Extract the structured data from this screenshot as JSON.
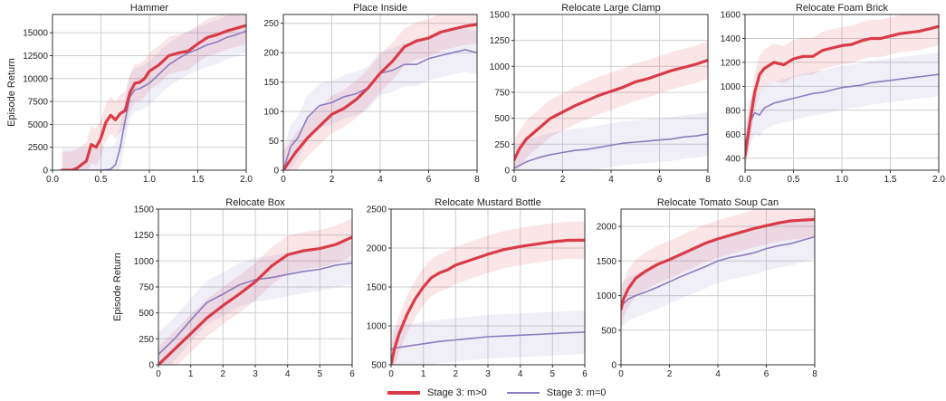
{
  "figure": {
    "ylabel": "Episode Return",
    "colors": {
      "m_pos": "#d93b48",
      "m_zero": "#8d7cbf",
      "grid": "#cfcfcf"
    }
  },
  "legend": {
    "items": [
      {
        "label": "Stage 3: m>0",
        "color": "#d93b48",
        "style": "thick"
      },
      {
        "label": "Stage 3: m=0",
        "color": "#8d7cbf",
        "style": "thin"
      }
    ]
  },
  "chart_data": [
    {
      "type": "line",
      "title": "Hammer",
      "xlabel": "",
      "ylabel": "Episode Return",
      "xlim": [
        0,
        2
      ],
      "ylim": [
        0,
        17000
      ],
      "xticks": [
        0,
        0.5,
        1,
        1.5,
        2
      ],
      "xtick_labels": [
        "0.0",
        "0.5",
        "1.0",
        "1.5",
        "2.0"
      ],
      "yticks": [
        0,
        2500,
        5000,
        7500,
        10000,
        12500,
        15000
      ],
      "series": [
        {
          "name": "Stage 3: m>0",
          "x": [
            0.1,
            0.2,
            0.25,
            0.3,
            0.35,
            0.4,
            0.45,
            0.5,
            0.55,
            0.6,
            0.65,
            0.7,
            0.75,
            0.8,
            0.85,
            0.9,
            0.95,
            1.0,
            1.1,
            1.2,
            1.3,
            1.4,
            1.5,
            1.6,
            1.7,
            1.8,
            1.9,
            2.0
          ],
          "y": [
            0,
            0,
            200,
            600,
            1000,
            2800,
            2500,
            3500,
            5200,
            6000,
            5500,
            6200,
            6500,
            8500,
            9500,
            9600,
            10000,
            10800,
            11500,
            12500,
            12800,
            13000,
            13800,
            14500,
            14800,
            15200,
            15500,
            15800
          ]
        },
        {
          "name": "Stage 3: m=0",
          "x": [
            0.1,
            0.3,
            0.5,
            0.6,
            0.65,
            0.7,
            0.75,
            0.8,
            0.85,
            0.9,
            1.0,
            1.1,
            1.2,
            1.3,
            1.4,
            1.5,
            1.6,
            1.7,
            1.8,
            1.9,
            2.0
          ],
          "y": [
            0,
            0,
            0,
            100,
            600,
            2500,
            5500,
            8000,
            8800,
            8900,
            9500,
            10500,
            11500,
            12200,
            12800,
            13200,
            13700,
            14000,
            14500,
            14800,
            15200
          ]
        }
      ]
    },
    {
      "type": "line",
      "title": "Place Inside",
      "xlabel": "",
      "ylabel": "",
      "xlim": [
        0,
        8
      ],
      "ylim": [
        0,
        265
      ],
      "xticks": [
        0,
        2,
        4,
        6,
        8
      ],
      "xtick_labels": [
        "0",
        "2",
        "4",
        "6",
        "8"
      ],
      "yticks": [
        0,
        50,
        100,
        150,
        200,
        250
      ],
      "series": [
        {
          "name": "Stage 3: m>0",
          "x": [
            0,
            0.5,
            1,
            1.5,
            2,
            2.5,
            3,
            3.5,
            4,
            4.5,
            5,
            5.5,
            6,
            6.5,
            7,
            7.5,
            8
          ],
          "y": [
            0,
            30,
            55,
            75,
            95,
            105,
            120,
            140,
            165,
            185,
            210,
            220,
            225,
            235,
            240,
            245,
            248
          ]
        },
        {
          "name": "Stage 3: m=0",
          "x": [
            0,
            0.3,
            0.6,
            1,
            1.5,
            2,
            2.5,
            3,
            3.5,
            4,
            4.5,
            5,
            5.5,
            6,
            6.5,
            7,
            7.5,
            8
          ],
          "y": [
            0,
            40,
            55,
            90,
            110,
            115,
            125,
            130,
            140,
            165,
            170,
            180,
            180,
            190,
            195,
            200,
            205,
            200
          ]
        }
      ]
    },
    {
      "type": "line",
      "title": "Relocate Large Clamp",
      "xlabel": "",
      "ylabel": "",
      "xlim": [
        0,
        8
      ],
      "ylim": [
        0,
        1500
      ],
      "xticks": [
        0,
        2,
        4,
        6,
        8
      ],
      "xtick_labels": [
        "0",
        "2",
        "4",
        "6",
        "8"
      ],
      "yticks": [
        0,
        250,
        500,
        750,
        1000,
        1250,
        1500
      ],
      "series": [
        {
          "name": "Stage 3: m>0",
          "x": [
            0,
            0.2,
            0.5,
            1,
            1.5,
            2,
            2.5,
            3,
            3.5,
            4,
            4.5,
            5,
            5.5,
            6,
            6.5,
            7,
            7.5,
            8
          ],
          "y": [
            100,
            200,
            300,
            400,
            500,
            560,
            620,
            670,
            720,
            760,
            800,
            850,
            880,
            920,
            960,
            990,
            1020,
            1060
          ]
        },
        {
          "name": "Stage 3: m=0",
          "x": [
            0,
            0.5,
            1,
            1.5,
            2,
            2.5,
            3,
            3.5,
            4,
            4.5,
            5,
            5.5,
            6,
            6.5,
            7,
            7.5,
            8
          ],
          "y": [
            20,
            80,
            120,
            150,
            170,
            190,
            200,
            220,
            240,
            260,
            270,
            280,
            290,
            300,
            320,
            330,
            350
          ]
        }
      ]
    },
    {
      "type": "line",
      "title": "Relocate Foam Brick",
      "xlabel": "",
      "ylabel": "",
      "xlim": [
        0,
        2
      ],
      "ylim": [
        300,
        1600
      ],
      "xticks": [
        0,
        0.5,
        1,
        1.5,
        2
      ],
      "xtick_labels": [
        "0.0",
        "0.5",
        "1.0",
        "1.5",
        "2.0"
      ],
      "yticks": [
        400,
        600,
        800,
        1000,
        1200,
        1400,
        1600
      ],
      "series": [
        {
          "name": "Stage 3: m>0",
          "x": [
            0,
            0.05,
            0.1,
            0.15,
            0.2,
            0.3,
            0.4,
            0.5,
            0.6,
            0.7,
            0.8,
            0.9,
            1.0,
            1.1,
            1.2,
            1.3,
            1.4,
            1.5,
            1.6,
            1.7,
            1.8,
            1.9,
            2.0
          ],
          "y": [
            420,
            700,
            950,
            1100,
            1150,
            1200,
            1180,
            1230,
            1250,
            1250,
            1300,
            1320,
            1340,
            1350,
            1380,
            1400,
            1400,
            1420,
            1440,
            1450,
            1460,
            1480,
            1500
          ]
        },
        {
          "name": "Stage 3: m=0",
          "x": [
            0,
            0.05,
            0.1,
            0.15,
            0.2,
            0.3,
            0.4,
            0.5,
            0.6,
            0.7,
            0.8,
            0.9,
            1.0,
            1.1,
            1.2,
            1.3,
            1.4,
            1.5,
            1.6,
            1.7,
            1.8,
            1.9,
            2.0
          ],
          "y": [
            500,
            700,
            780,
            760,
            820,
            860,
            880,
            900,
            920,
            940,
            950,
            970,
            990,
            1000,
            1010,
            1030,
            1040,
            1050,
            1060,
            1070,
            1080,
            1090,
            1100
          ]
        }
      ]
    },
    {
      "type": "line",
      "title": "Relocate Box",
      "xlabel": "",
      "ylabel": "Episode Return",
      "xlim": [
        0,
        6
      ],
      "ylim": [
        0,
        1500
      ],
      "xticks": [
        0,
        1,
        2,
        3,
        4,
        5,
        6
      ],
      "xtick_labels": [
        "0",
        "1",
        "2",
        "3",
        "4",
        "5",
        "6"
      ],
      "yticks": [
        0,
        250,
        500,
        750,
        1000,
        1250,
        1500
      ],
      "series": [
        {
          "name": "Stage 3: m>0",
          "x": [
            0,
            0.5,
            1,
            1.5,
            2,
            2.5,
            3,
            3.5,
            4,
            4.5,
            5,
            5.5,
            6
          ],
          "y": [
            0,
            150,
            300,
            450,
            570,
            680,
            800,
            950,
            1060,
            1100,
            1120,
            1160,
            1230
          ]
        },
        {
          "name": "Stage 3: m=0",
          "x": [
            0,
            0.5,
            1,
            1.5,
            2,
            2.5,
            3,
            3.5,
            4,
            4.5,
            5,
            5.5,
            6
          ],
          "y": [
            100,
            250,
            430,
            600,
            680,
            770,
            820,
            840,
            870,
            900,
            920,
            960,
            980
          ]
        }
      ]
    },
    {
      "type": "line",
      "title": "Relocate Mustard Bottle",
      "xlabel": "",
      "ylabel": "",
      "xlim": [
        0,
        6
      ],
      "ylim": [
        500,
        2500
      ],
      "xticks": [
        0,
        1,
        2,
        3,
        4,
        5,
        6
      ],
      "xtick_labels": [
        "0",
        "1",
        "2",
        "3",
        "4",
        "5",
        "6"
      ],
      "yticks": [
        500,
        1000,
        1500,
        2000,
        2500
      ],
      "series": [
        {
          "name": "Stage 3: m>0",
          "x": [
            0,
            0.1,
            0.25,
            0.5,
            0.75,
            1,
            1.25,
            1.5,
            1.75,
            2,
            2.5,
            3,
            3.5,
            4,
            4.5,
            5,
            5.5,
            6
          ],
          "y": [
            500,
            700,
            900,
            1150,
            1350,
            1500,
            1620,
            1680,
            1720,
            1780,
            1850,
            1920,
            1980,
            2020,
            2050,
            2080,
            2100,
            2100
          ]
        },
        {
          "name": "Stage 3: m=0",
          "x": [
            0,
            0.2,
            0.5,
            1,
            1.5,
            2,
            2.5,
            3,
            3.5,
            4,
            4.5,
            5,
            5.5,
            6
          ],
          "y": [
            700,
            720,
            740,
            770,
            800,
            820,
            840,
            860,
            870,
            880,
            890,
            900,
            910,
            920
          ]
        }
      ]
    },
    {
      "type": "line",
      "title": "Relocate Tomato Soup Can",
      "xlabel": "",
      "ylabel": "",
      "xlim": [
        0,
        8
      ],
      "ylim": [
        0,
        2250
      ],
      "xticks": [
        0,
        2,
        4,
        6,
        8
      ],
      "xtick_labels": [
        "0",
        "2",
        "4",
        "6",
        "8"
      ],
      "yticks": [
        0,
        500,
        1000,
        1500,
        2000
      ],
      "series": [
        {
          "name": "Stage 3: m>0",
          "x": [
            0,
            0.1,
            0.3,
            0.6,
            1,
            1.5,
            2,
            2.5,
            3,
            3.5,
            4,
            4.5,
            5,
            5.5,
            6,
            6.5,
            7,
            7.5,
            8
          ],
          "y": [
            800,
            950,
            1100,
            1250,
            1350,
            1450,
            1520,
            1600,
            1680,
            1760,
            1820,
            1870,
            1920,
            1970,
            2010,
            2050,
            2080,
            2090,
            2100
          ]
        },
        {
          "name": "Stage 3: m=0",
          "x": [
            0,
            0.3,
            0.6,
            1,
            1.5,
            2,
            2.5,
            3,
            3.5,
            4,
            4.5,
            5,
            5.5,
            6,
            6.5,
            7,
            7.5,
            8
          ],
          "y": [
            850,
            950,
            1000,
            1050,
            1120,
            1200,
            1280,
            1350,
            1420,
            1500,
            1550,
            1580,
            1620,
            1680,
            1720,
            1750,
            1800,
            1850
          ]
        }
      ]
    }
  ]
}
